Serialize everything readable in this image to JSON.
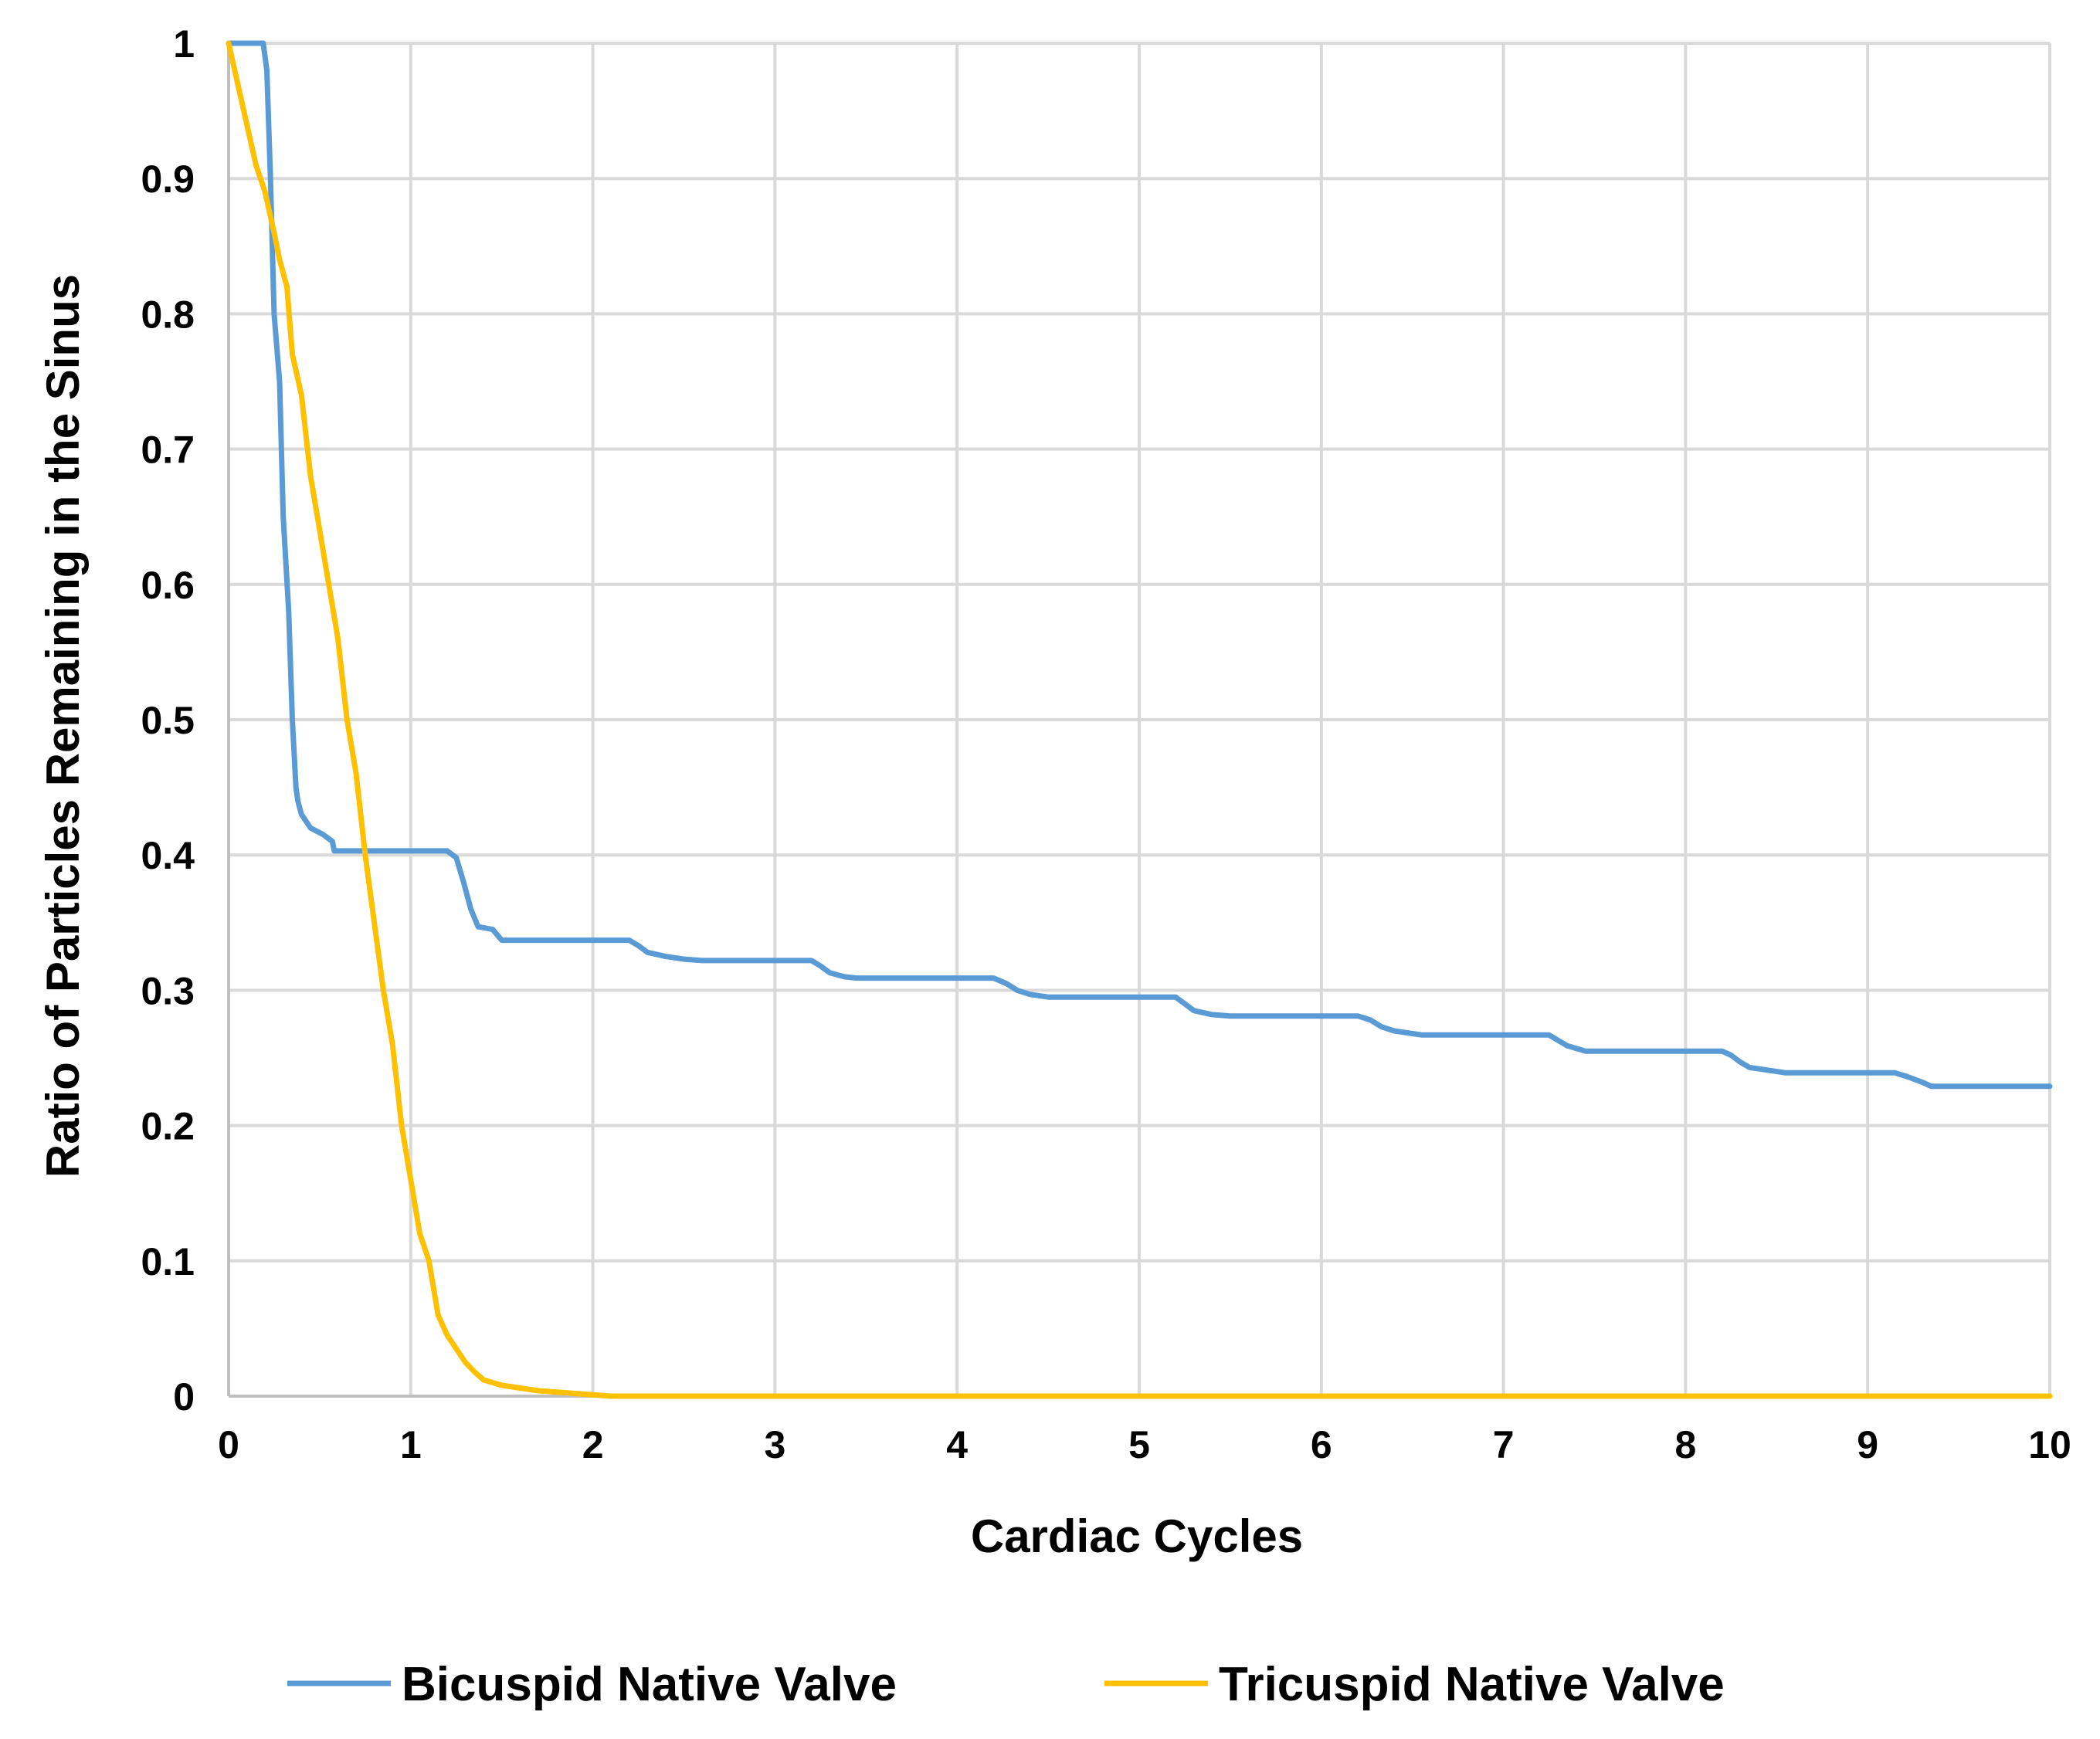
{
  "chart_data": {
    "type": "line",
    "title": "",
    "xlabel": "Cardiac Cycles",
    "ylabel": "Ratio of Particles Remaining in the Sinus",
    "xlim": [
      0,
      10
    ],
    "ylim": [
      0,
      1
    ],
    "x_ticks": [
      0,
      1,
      2,
      3,
      4,
      5,
      6,
      7,
      8,
      9,
      10
    ],
    "y_ticks": [
      0,
      0.1,
      0.2,
      0.3,
      0.4,
      0.5,
      0.6,
      0.7,
      0.8,
      0.9,
      1
    ],
    "x_tick_labels": [
      "0",
      "1",
      "2",
      "3",
      "4",
      "5",
      "6",
      "7",
      "8",
      "9",
      "10"
    ],
    "y_tick_labels": [
      "0",
      "0.1",
      "0.2",
      "0.3",
      "0.4",
      "0.5",
      "0.6",
      "0.7",
      "0.8",
      "0.9",
      "1"
    ],
    "grid": true,
    "legend_position": "bottom",
    "series": [
      {
        "name": "Bicuspid Native Valve",
        "color": "#5b9bd5",
        "x": [
          0,
          0.19,
          0.21,
          0.23,
          0.25,
          0.28,
          0.3,
          0.33,
          0.35,
          0.37,
          0.38,
          0.4,
          0.45,
          0.52,
          0.57,
          0.58,
          0.65,
          1.0,
          1.2,
          1.25,
          1.29,
          1.33,
          1.37,
          1.45,
          1.5,
          2.0,
          2.2,
          2.25,
          2.3,
          2.4,
          2.5,
          2.6,
          3.2,
          3.25,
          3.3,
          3.38,
          3.45,
          4.2,
          4.27,
          4.33,
          4.4,
          4.5,
          4.55,
          5.2,
          5.25,
          5.3,
          5.4,
          5.5,
          6.2,
          6.27,
          6.33,
          6.4,
          6.5,
          6.55,
          7.25,
          7.3,
          7.35,
          7.45,
          8.2,
          8.25,
          8.3,
          8.35,
          8.45,
          8.55,
          9.15,
          9.22,
          9.3,
          9.35,
          10
        ],
        "values": [
          1.0,
          1.0,
          0.98,
          0.9,
          0.8,
          0.75,
          0.65,
          0.58,
          0.5,
          0.45,
          0.44,
          0.43,
          0.42,
          0.415,
          0.41,
          0.403,
          0.403,
          0.403,
          0.403,
          0.398,
          0.38,
          0.36,
          0.347,
          0.345,
          0.337,
          0.337,
          0.337,
          0.333,
          0.328,
          0.325,
          0.323,
          0.322,
          0.322,
          0.318,
          0.313,
          0.31,
          0.309,
          0.309,
          0.305,
          0.3,
          0.297,
          0.295,
          0.295,
          0.295,
          0.29,
          0.285,
          0.282,
          0.281,
          0.281,
          0.278,
          0.273,
          0.27,
          0.268,
          0.267,
          0.267,
          0.263,
          0.259,
          0.255,
          0.255,
          0.252,
          0.247,
          0.243,
          0.241,
          0.239,
          0.239,
          0.236,
          0.232,
          0.229,
          0.229
        ]
      },
      {
        "name": "Tricuspid Native Valve",
        "color": "#ffc000",
        "x": [
          0,
          0.05,
          0.1,
          0.15,
          0.2,
          0.25,
          0.28,
          0.32,
          0.35,
          0.4,
          0.45,
          0.5,
          0.55,
          0.6,
          0.65,
          0.7,
          0.75,
          0.8,
          0.85,
          0.9,
          0.95,
          1.0,
          1.05,
          1.1,
          1.15,
          1.2,
          1.25,
          1.3,
          1.35,
          1.4,
          1.5,
          1.6,
          1.7,
          1.8,
          1.9,
          2.0,
          2.1,
          2.2,
          10
        ],
        "values": [
          1.0,
          0.97,
          0.94,
          0.91,
          0.89,
          0.86,
          0.84,
          0.82,
          0.77,
          0.74,
          0.68,
          0.64,
          0.6,
          0.56,
          0.5,
          0.46,
          0.4,
          0.35,
          0.3,
          0.26,
          0.2,
          0.16,
          0.12,
          0.1,
          0.06,
          0.045,
          0.035,
          0.025,
          0.018,
          0.012,
          0.008,
          0.006,
          0.004,
          0.003,
          0.002,
          0.001,
          0.0,
          0.0,
          0.0
        ]
      }
    ]
  }
}
